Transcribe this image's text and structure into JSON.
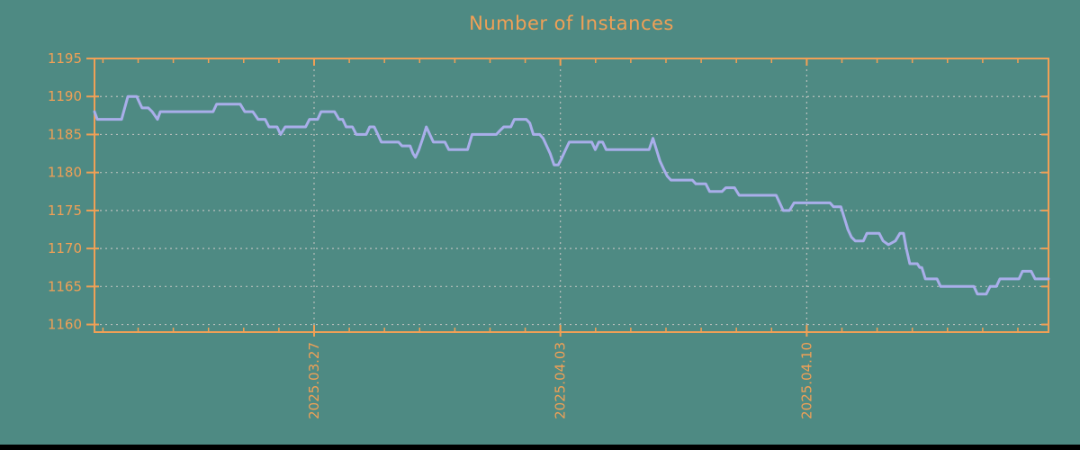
{
  "title": "Number of Instances",
  "colors": {
    "background": "#4e8a83",
    "accent_orange": "#f0a056",
    "line": "#a9aeea",
    "grid": "#b8bfbc",
    "bottom_bar": "#000000"
  },
  "chart_data": {
    "type": "line",
    "title": "Number of Instances",
    "xlabel": "",
    "ylabel": "",
    "grid": true,
    "legend_position": "none",
    "ylim": [
      1159,
      1195
    ],
    "xlim_days": [
      0,
      27.11
    ],
    "y_ticks": [
      1160,
      1165,
      1170,
      1175,
      1180,
      1185,
      1190,
      1195
    ],
    "y_grid_values": [
      1160,
      1165,
      1170,
      1175,
      1180,
      1185,
      1190
    ],
    "x_major_ticks": [
      {
        "label": "2025.03.27",
        "day": 6.24
      },
      {
        "label": "2025.04.03",
        "day": 13.24
      },
      {
        "label": "2025.04.10",
        "day": 20.24
      }
    ],
    "x_minor": {
      "start_day": 0.24,
      "step_days": 1,
      "count": 27
    },
    "series": [
      {
        "name": "instances",
        "points": [
          [
            0,
            1188
          ],
          [
            0.08,
            1187
          ],
          [
            0.77,
            1187
          ],
          [
            0.95,
            1190
          ],
          [
            1.2,
            1190
          ],
          [
            1.3,
            1189
          ],
          [
            1.35,
            1188.5
          ],
          [
            1.53,
            1188.5
          ],
          [
            1.64,
            1188
          ],
          [
            1.79,
            1187
          ],
          [
            1.87,
            1188
          ],
          [
            3.37,
            1188
          ],
          [
            3.47,
            1189
          ],
          [
            4.14,
            1189
          ],
          [
            4.27,
            1188
          ],
          [
            4.5,
            1188
          ],
          [
            4.65,
            1187
          ],
          [
            4.85,
            1187
          ],
          [
            4.96,
            1186
          ],
          [
            5.19,
            1186
          ],
          [
            5.29,
            1185
          ],
          [
            5.42,
            1186
          ],
          [
            6.0,
            1186
          ],
          [
            6.11,
            1187
          ],
          [
            6.34,
            1187
          ],
          [
            6.44,
            1188
          ],
          [
            6.82,
            1188
          ],
          [
            6.95,
            1187
          ],
          [
            7.05,
            1187
          ],
          [
            7.15,
            1186
          ],
          [
            7.33,
            1186
          ],
          [
            7.44,
            1185
          ],
          [
            7.72,
            1185
          ],
          [
            7.82,
            1186
          ],
          [
            7.95,
            1186
          ],
          [
            8.05,
            1185
          ],
          [
            8.15,
            1184
          ],
          [
            8.64,
            1184
          ],
          [
            8.74,
            1183.5
          ],
          [
            8.97,
            1183.5
          ],
          [
            9.05,
            1182.5
          ],
          [
            9.12,
            1182
          ],
          [
            9.22,
            1183
          ],
          [
            9.33,
            1184.5
          ],
          [
            9.43,
            1186
          ],
          [
            9.53,
            1185
          ],
          [
            9.63,
            1184
          ],
          [
            9.96,
            1184
          ],
          [
            10.07,
            1183
          ],
          [
            10.6,
            1183
          ],
          [
            10.73,
            1185
          ],
          [
            11.42,
            1185
          ],
          [
            11.52,
            1185.5
          ],
          [
            11.63,
            1186
          ],
          [
            11.83,
            1186
          ],
          [
            11.93,
            1187
          ],
          [
            12.27,
            1187
          ],
          [
            12.37,
            1186.5
          ],
          [
            12.47,
            1185
          ],
          [
            12.65,
            1185
          ],
          [
            12.75,
            1184.5
          ],
          [
            12.85,
            1183.5
          ],
          [
            12.95,
            1182.5
          ],
          [
            13.06,
            1181
          ],
          [
            13.18,
            1181
          ],
          [
            13.29,
            1182
          ],
          [
            13.39,
            1183
          ],
          [
            13.49,
            1184
          ],
          [
            14.13,
            1184
          ],
          [
            14.23,
            1183
          ],
          [
            14.33,
            1184
          ],
          [
            14.44,
            1184
          ],
          [
            14.54,
            1183
          ],
          [
            15.76,
            1183
          ],
          [
            15.87,
            1184.5
          ],
          [
            15.97,
            1183
          ],
          [
            16.07,
            1181.5
          ],
          [
            16.17,
            1180.5
          ],
          [
            16.28,
            1179.5
          ],
          [
            16.38,
            1179
          ],
          [
            16.99,
            1179
          ],
          [
            17.09,
            1178.5
          ],
          [
            17.37,
            1178.5
          ],
          [
            17.48,
            1177.5
          ],
          [
            17.83,
            1177.5
          ],
          [
            17.94,
            1178
          ],
          [
            18.19,
            1178
          ],
          [
            18.32,
            1177
          ],
          [
            19.37,
            1177
          ],
          [
            19.47,
            1176
          ],
          [
            19.57,
            1175
          ],
          [
            19.75,
            1175
          ],
          [
            19.88,
            1176
          ],
          [
            20.9,
            1176
          ],
          [
            21.0,
            1175.5
          ],
          [
            21.21,
            1175.5
          ],
          [
            21.31,
            1174
          ],
          [
            21.41,
            1172.5
          ],
          [
            21.51,
            1171.5
          ],
          [
            21.62,
            1171
          ],
          [
            21.85,
            1171
          ],
          [
            21.95,
            1172
          ],
          [
            22.3,
            1172
          ],
          [
            22.41,
            1171
          ],
          [
            22.56,
            1170.5
          ],
          [
            22.76,
            1171
          ],
          [
            22.89,
            1172
          ],
          [
            22.99,
            1172
          ],
          [
            23.07,
            1170
          ],
          [
            23.17,
            1168
          ],
          [
            23.38,
            1168
          ],
          [
            23.45,
            1167.5
          ],
          [
            23.51,
            1167.5
          ],
          [
            23.61,
            1166
          ],
          [
            23.94,
            1166
          ],
          [
            24.04,
            1165
          ],
          [
            24.99,
            1165
          ],
          [
            25.09,
            1164
          ],
          [
            25.34,
            1164
          ],
          [
            25.45,
            1165
          ],
          [
            25.63,
            1165
          ],
          [
            25.73,
            1166
          ],
          [
            26.27,
            1166
          ],
          [
            26.37,
            1167
          ],
          [
            26.62,
            1167
          ],
          [
            26.73,
            1166
          ],
          [
            27.11,
            1166
          ]
        ]
      }
    ]
  }
}
